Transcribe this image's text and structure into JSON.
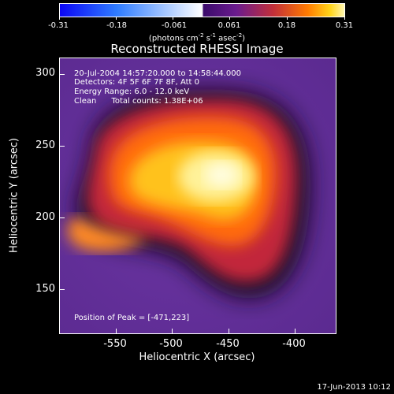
{
  "colorbar": {
    "tick_labels": [
      "-0.31",
      "-0.18",
      "-0.061",
      "0.061",
      "0.18",
      "0.31"
    ],
    "units_text": "(photons cm",
    "units_exp1": "-2",
    "units_mid": " s",
    "units_exp2": "-1",
    "units_asec": " asec",
    "units_exp3": "-2",
    "units_close": ")"
  },
  "title": "Reconstructed RHESSI Image",
  "overlay": {
    "line1": "20-Jul-2004 14:57:20.000 to 14:58:44.000",
    "line2": "Detectors: 4F 5F 6F 7F 8F, Att 0",
    "line3": "Energy Range: 6.0 - 12.0 keV",
    "line4": "Clean      Total counts: 1.38E+06",
    "peak": "Position of Peak = [-471,223]"
  },
  "axes": {
    "xlabel": "Heliocentric X (arcsec)",
    "ylabel": "Heliocentric Y (arcsec)",
    "x_ticks": [
      "-550",
      "-500",
      "-450",
      "-400"
    ],
    "y_ticks": [
      "300",
      "250",
      "200",
      "150"
    ]
  },
  "footer": {
    "date": "17-Jun-2013 10:12"
  },
  "colors": {
    "background": "#5a2a8c",
    "peak": "#fff7a0",
    "core": "#ffd21f"
  }
}
